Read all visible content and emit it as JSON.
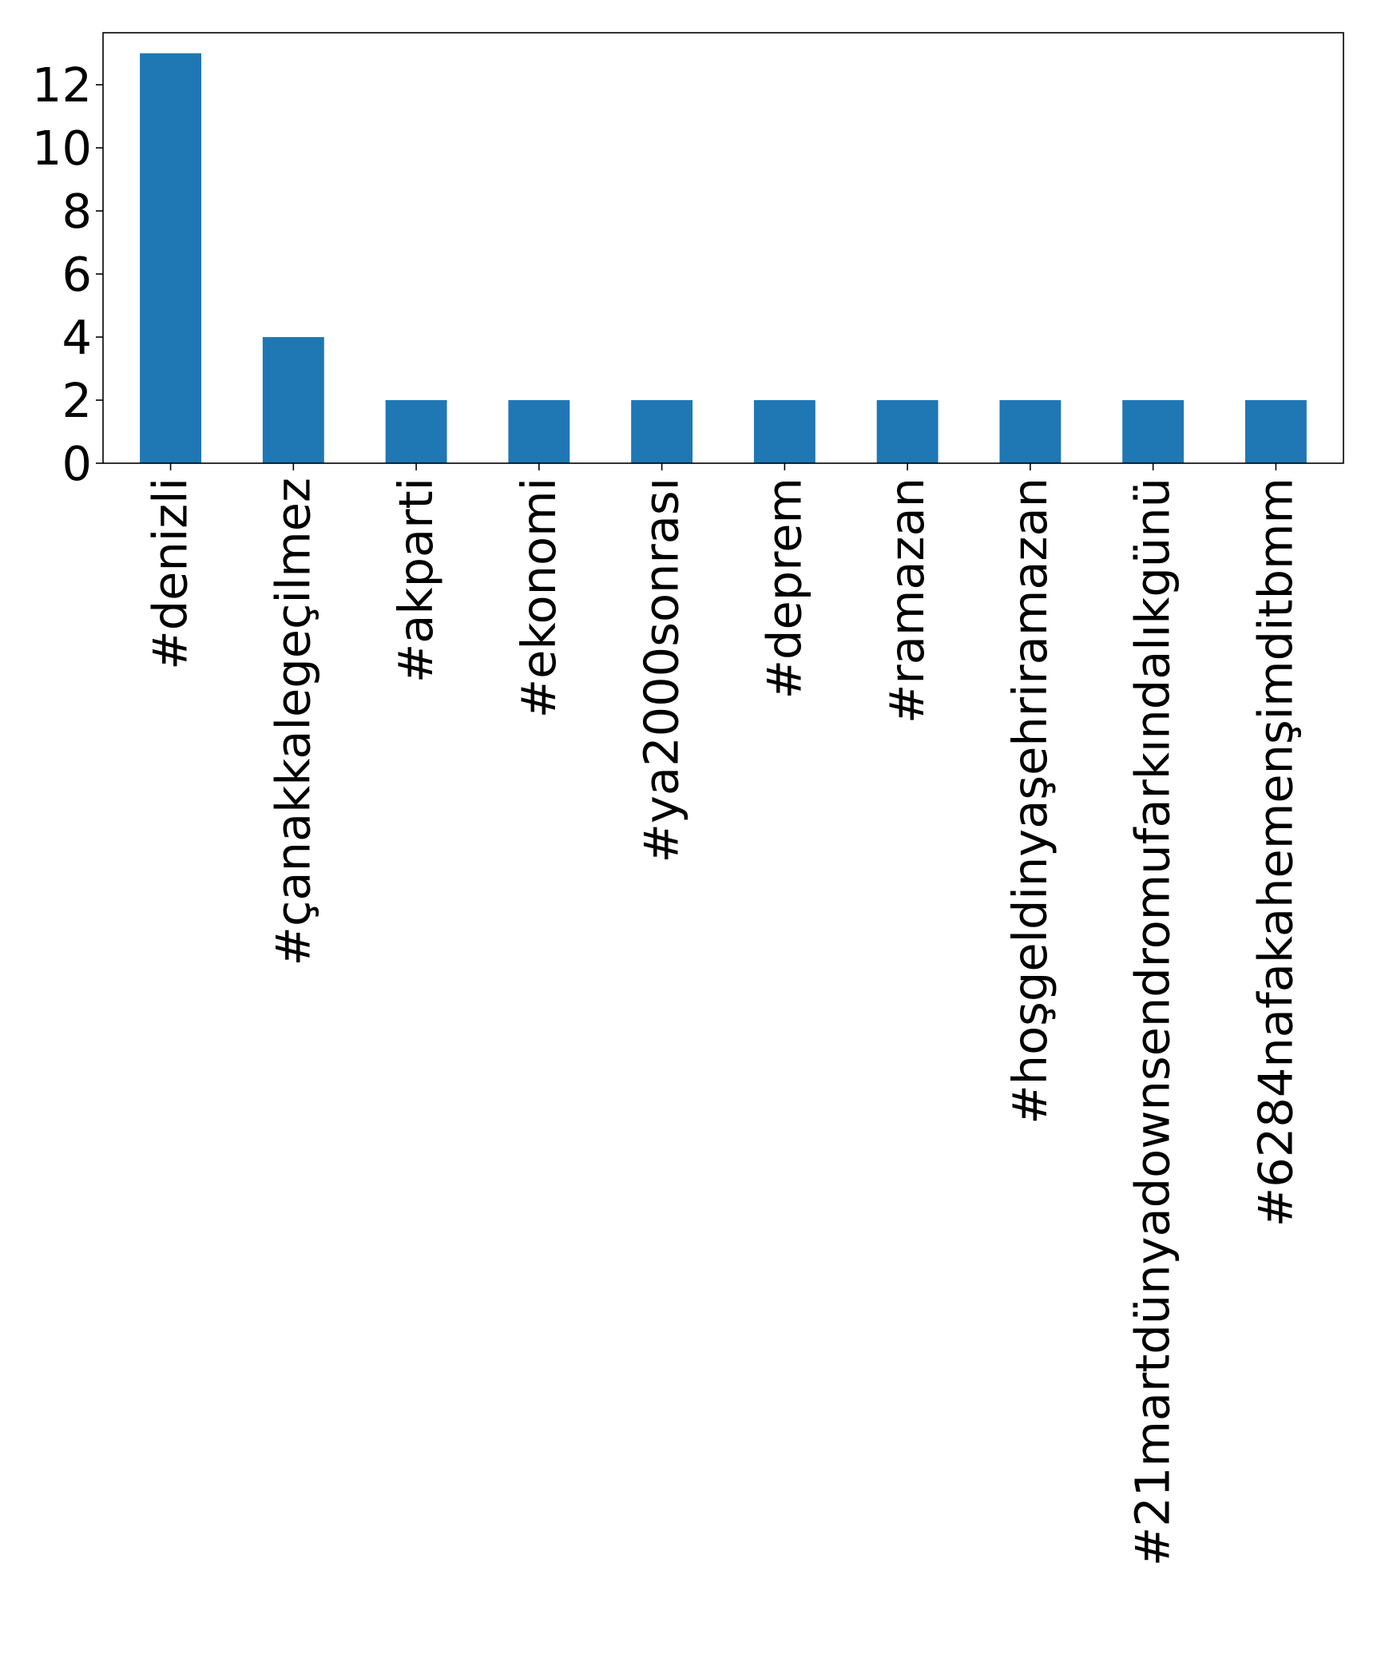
{
  "chart_data": {
    "type": "bar",
    "categories": [
      "#denizli",
      "#çanakkalegeçilmez",
      "#akparti",
      "#ekonomi",
      "#ya2000sonrası",
      "#deprem",
      "#ramazan",
      "#hoşgeldinyaşehriramazan",
      "#21martdünyadownsendromufarkındalıkgünü",
      "#6284nafakahemenşimditbmm"
    ],
    "values": [
      13,
      4,
      2,
      2,
      2,
      2,
      2,
      2,
      2,
      2
    ],
    "title": "",
    "xlabel": "",
    "ylabel": "",
    "ylim": [
      0,
      13.65
    ],
    "yticks": [
      0,
      2,
      4,
      6,
      8,
      10,
      12
    ],
    "grid": false,
    "legend": "none",
    "bar_color": "#1f77b4"
  }
}
